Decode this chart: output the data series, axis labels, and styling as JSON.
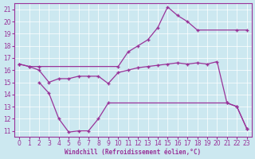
{
  "xlabel": "Windchill (Refroidissement éolien,°C)",
  "xlim": [
    -0.5,
    23.5
  ],
  "ylim": [
    10.5,
    21.5
  ],
  "yticks": [
    11,
    12,
    13,
    14,
    15,
    16,
    17,
    18,
    19,
    20,
    21
  ],
  "xticks": [
    0,
    1,
    2,
    3,
    4,
    5,
    6,
    7,
    8,
    9,
    10,
    11,
    12,
    13,
    14,
    15,
    16,
    17,
    18,
    19,
    20,
    21,
    22,
    23
  ],
  "bg_color": "#cce8f0",
  "line_color": "#993399",
  "lines": [
    {
      "x": [
        0,
        1,
        2,
        10,
        11,
        12,
        13,
        14,
        15,
        16,
        17,
        18,
        22,
        23
      ],
      "y": [
        16.5,
        16.3,
        16.3,
        16.3,
        17.5,
        18.0,
        18.5,
        19.5,
        21.2,
        20.5,
        20.0,
        19.3,
        19.3,
        19.3
      ]
    },
    {
      "x": [
        0,
        1,
        2,
        3,
        4,
        5,
        6,
        7,
        8,
        9,
        10,
        11,
        12,
        13,
        14,
        15,
        16,
        17,
        18,
        19,
        20,
        21,
        22,
        23
      ],
      "y": [
        16.5,
        16.3,
        16.0,
        15.0,
        15.3,
        15.3,
        15.5,
        15.5,
        15.5,
        14.9,
        15.8,
        16.0,
        16.2,
        16.3,
        16.4,
        16.5,
        16.6,
        16.5,
        16.6,
        16.5,
        16.7,
        13.3,
        13.0,
        11.2
      ]
    },
    {
      "x": [
        2,
        3,
        4,
        5,
        6,
        7,
        8,
        9,
        21,
        22,
        23
      ],
      "y": [
        15.0,
        14.1,
        12.0,
        10.9,
        11.0,
        11.0,
        12.0,
        13.3,
        13.3,
        13.0,
        11.2
      ]
    }
  ]
}
